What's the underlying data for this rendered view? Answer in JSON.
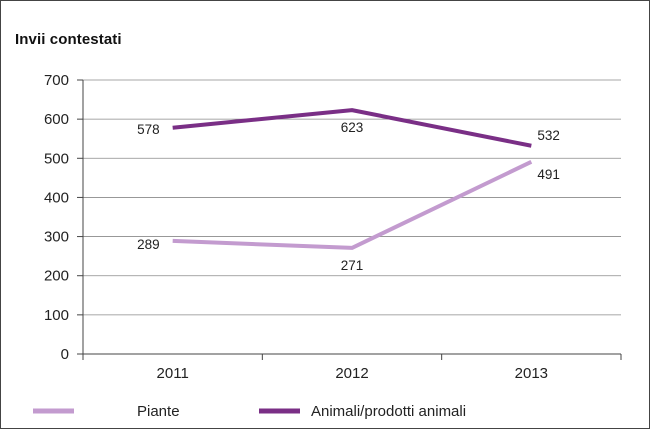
{
  "chart_data": {
    "type": "line",
    "title": "Invii contestati",
    "categories": [
      "2011",
      "2012",
      "2013"
    ],
    "ylim": [
      0,
      700
    ],
    "yticks": [
      0,
      100,
      200,
      300,
      400,
      500,
      600,
      700
    ],
    "grid": true,
    "legend_placement": "bottom-left",
    "series": [
      {
        "name": "Piante",
        "values": [
          289,
          271,
          491
        ],
        "color": "#c39bcf"
      },
      {
        "name": "Animali/prodotti animali",
        "values": [
          578,
          623,
          532
        ],
        "color": "#7a2f86"
      }
    ]
  }
}
